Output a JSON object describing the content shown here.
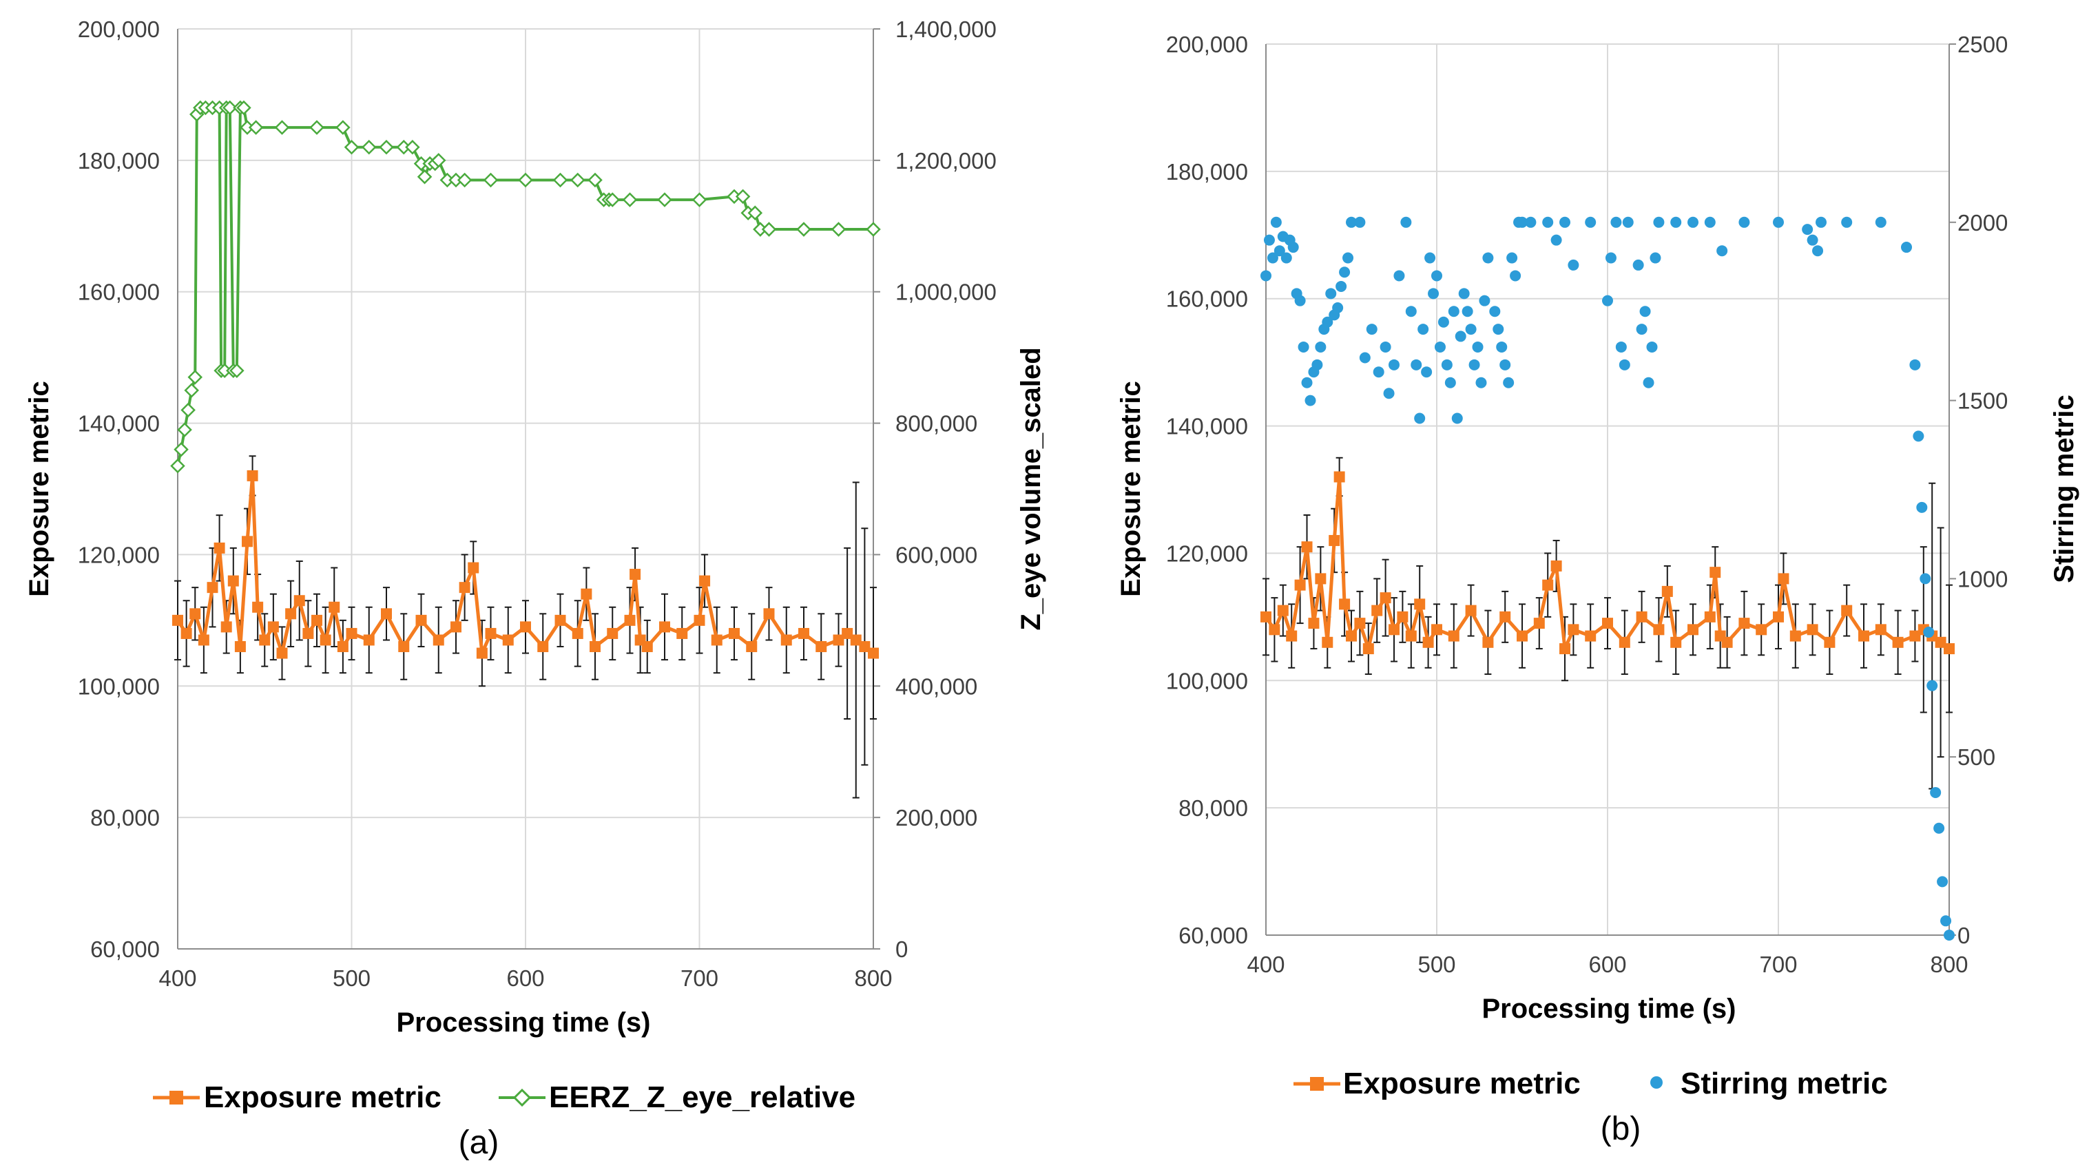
{
  "colors": {
    "exposure": "#F47C20",
    "eerz": "#4AAA3D",
    "stirring": "#2C9CD8",
    "error_bar": "#1a1a1a",
    "grid": "#D9D9D9"
  },
  "chart_data": [
    {
      "panel": "a",
      "type": "line",
      "panel_label": "(a)",
      "xlabel": "Processing time (s)",
      "ylabel": "Exposure metric",
      "y2label": "Z_eye volume_scaled",
      "xlim": [
        400,
        800
      ],
      "ylim": [
        60000,
        200000
      ],
      "y2lim": [
        0,
        1400000
      ],
      "xticks": [
        400,
        500,
        600,
        700,
        800
      ],
      "xtick_labels": [
        "400",
        "500",
        "600",
        "700",
        "800"
      ],
      "yticks": [
        60000,
        80000,
        100000,
        120000,
        140000,
        160000,
        180000,
        200000
      ],
      "ytick_labels": [
        "60,000",
        "80,000",
        "100,000",
        "120,000",
        "140,000",
        "160,000",
        "180,000",
        "200,000"
      ],
      "y2ticks": [
        0,
        200000,
        400000,
        600000,
        800000,
        1000000,
        1200000,
        1400000
      ],
      "y2tick_labels": [
        "0",
        "200,000",
        "400,000",
        "600,000",
        "800,000",
        "1,000,000",
        "1,200,000",
        "1,400,000"
      ],
      "legend": [
        "Exposure metric",
        "EERZ_Z_eye_relative"
      ],
      "series": [
        {
          "name": "Exposure metric",
          "axis": "left",
          "marker": "square",
          "x": [
            400,
            405,
            410,
            415,
            420,
            424,
            428,
            432,
            436,
            440,
            443,
            446,
            450,
            455,
            460,
            465,
            470,
            475,
            480,
            485,
            490,
            495,
            500,
            510,
            520,
            530,
            540,
            550,
            560,
            565,
            570,
            575,
            580,
            590,
            600,
            610,
            620,
            630,
            635,
            640,
            650,
            660,
            663,
            666,
            670,
            680,
            690,
            700,
            703,
            710,
            720,
            730,
            740,
            750,
            760,
            770,
            780,
            785,
            790,
            795,
            800
          ],
          "y": [
            110000,
            108000,
            111000,
            107000,
            115000,
            121000,
            109000,
            116000,
            106000,
            122000,
            132000,
            112000,
            107000,
            109000,
            105000,
            111000,
            113000,
            108000,
            110000,
            107000,
            112000,
            106000,
            108000,
            107000,
            111000,
            106000,
            110000,
            107000,
            109000,
            115000,
            118000,
            105000,
            108000,
            107000,
            109000,
            106000,
            110000,
            108000,
            114000,
            106000,
            108000,
            110000,
            117000,
            107000,
            106000,
            109000,
            108000,
            110000,
            116000,
            107000,
            108000,
            106000,
            111000,
            107000,
            108000,
            106000,
            107000,
            108000,
            107000,
            106000,
            105000
          ],
          "yerr": [
            6000,
            5000,
            4000,
            5000,
            6000,
            5000,
            4000,
            5000,
            4000,
            5000,
            3000,
            5000,
            4000,
            5000,
            4000,
            5000,
            6000,
            5000,
            4000,
            5000,
            6000,
            4000,
            4000,
            5000,
            4000,
            5000,
            4000,
            5000,
            4000,
            5000,
            4000,
            5000,
            4000,
            5000,
            4000,
            5000,
            4000,
            5000,
            4000,
            5000,
            4000,
            5000,
            4000,
            5000,
            4000,
            5000,
            4000,
            5000,
            4000,
            5000,
            4000,
            5000,
            4000,
            5000,
            4000,
            5000,
            4000,
            13000,
            24000,
            18000,
            10000
          ]
        },
        {
          "name": "EERZ_Z_eye_relative",
          "axis": "right",
          "marker": "diamond",
          "x": [
            400,
            402,
            404,
            406,
            408,
            410,
            411,
            413,
            416,
            420,
            424,
            425,
            427,
            428,
            430,
            432,
            434,
            436,
            438,
            440,
            445,
            460,
            480,
            495,
            500,
            510,
            520,
            530,
            535,
            540,
            542,
            545,
            548,
            550,
            555,
            560,
            565,
            580,
            600,
            620,
            630,
            640,
            645,
            648,
            650,
            660,
            680,
            700,
            720,
            725,
            728,
            732,
            735,
            740,
            760,
            780,
            800
          ],
          "y": [
            735000,
            760000,
            790000,
            820000,
            850000,
            870000,
            1270000,
            1280000,
            1280000,
            1280000,
            1280000,
            880000,
            880000,
            1280000,
            1280000,
            880000,
            880000,
            1280000,
            1280000,
            1250000,
            1250000,
            1250000,
            1250000,
            1250000,
            1220000,
            1220000,
            1220000,
            1220000,
            1220000,
            1195000,
            1175000,
            1195000,
            1195000,
            1200000,
            1170000,
            1170000,
            1170000,
            1170000,
            1170000,
            1170000,
            1170000,
            1170000,
            1140000,
            1140000,
            1140000,
            1140000,
            1140000,
            1140000,
            1145000,
            1145000,
            1120000,
            1120000,
            1095000,
            1095000,
            1095000,
            1095000,
            1095000
          ]
        }
      ]
    },
    {
      "panel": "b",
      "type": "line",
      "panel_label": "(b)",
      "xlabel": "Processing time (s)",
      "ylabel": "Exposure metric",
      "y2label": "Stirring metric",
      "xlim": [
        400,
        800
      ],
      "ylim": [
        60000,
        200000
      ],
      "y2lim": [
        0,
        2500
      ],
      "xticks": [
        400,
        500,
        600,
        700,
        800
      ],
      "xtick_labels": [
        "400",
        "500",
        "600",
        "700",
        "800"
      ],
      "yticks": [
        60000,
        80000,
        100000,
        120000,
        140000,
        160000,
        180000,
        200000
      ],
      "ytick_labels": [
        "60,000",
        "80,000",
        "100,000",
        "120,000",
        "140,000",
        "160,000",
        "180,000",
        "200,000"
      ],
      "y2ticks": [
        0,
        500,
        1000,
        1500,
        2000,
        2500
      ],
      "y2tick_labels": [
        "0",
        "500",
        "1000",
        "1500",
        "2000",
        "2500"
      ],
      "legend": [
        "Exposure metric",
        "Stirring metric"
      ],
      "series": [
        {
          "name": "Exposure metric",
          "axis": "left",
          "marker": "square",
          "x": [
            400,
            405,
            410,
            415,
            420,
            424,
            428,
            432,
            436,
            440,
            443,
            446,
            450,
            455,
            460,
            465,
            470,
            475,
            480,
            485,
            490,
            495,
            500,
            510,
            520,
            530,
            540,
            550,
            560,
            565,
            570,
            575,
            580,
            590,
            600,
            610,
            620,
            630,
            635,
            640,
            650,
            660,
            663,
            666,
            670,
            680,
            690,
            700,
            703,
            710,
            720,
            730,
            740,
            750,
            760,
            770,
            780,
            785,
            790,
            795,
            800
          ],
          "y": [
            110000,
            108000,
            111000,
            107000,
            115000,
            121000,
            109000,
            116000,
            106000,
            122000,
            132000,
            112000,
            107000,
            109000,
            105000,
            111000,
            113000,
            108000,
            110000,
            107000,
            112000,
            106000,
            108000,
            107000,
            111000,
            106000,
            110000,
            107000,
            109000,
            115000,
            118000,
            105000,
            108000,
            107000,
            109000,
            106000,
            110000,
            108000,
            114000,
            106000,
            108000,
            110000,
            117000,
            107000,
            106000,
            109000,
            108000,
            110000,
            116000,
            107000,
            108000,
            106000,
            111000,
            107000,
            108000,
            106000,
            107000,
            108000,
            107000,
            106000,
            105000
          ],
          "yerr": [
            6000,
            5000,
            4000,
            5000,
            6000,
            5000,
            4000,
            5000,
            4000,
            5000,
            3000,
            5000,
            4000,
            5000,
            4000,
            5000,
            6000,
            5000,
            4000,
            5000,
            6000,
            4000,
            4000,
            5000,
            4000,
            5000,
            4000,
            5000,
            4000,
            5000,
            4000,
            5000,
            4000,
            5000,
            4000,
            5000,
            4000,
            5000,
            4000,
            5000,
            4000,
            5000,
            4000,
            5000,
            4000,
            5000,
            4000,
            5000,
            4000,
            5000,
            4000,
            5000,
            4000,
            5000,
            4000,
            5000,
            4000,
            13000,
            24000,
            18000,
            10000
          ]
        },
        {
          "name": "Stirring metric",
          "axis": "right",
          "marker": "circle",
          "x": [
            400,
            402,
            404,
            406,
            408,
            410,
            412,
            414,
            416,
            418,
            420,
            422,
            424,
            426,
            428,
            430,
            432,
            434,
            436,
            438,
            440,
            442,
            444,
            446,
            448,
            450,
            455,
            458,
            462,
            466,
            470,
            472,
            475,
            478,
            482,
            485,
            488,
            490,
            492,
            494,
            496,
            498,
            500,
            502,
            504,
            506,
            508,
            510,
            512,
            514,
            516,
            518,
            520,
            522,
            524,
            526,
            528,
            530,
            534,
            536,
            538,
            540,
            542,
            544,
            546,
            548,
            550,
            555,
            565,
            570,
            575,
            580,
            590,
            600,
            602,
            605,
            608,
            610,
            612,
            618,
            620,
            622,
            624,
            626,
            628,
            630,
            640,
            650,
            660,
            667,
            680,
            700,
            717,
            720,
            723,
            725,
            740,
            760,
            775,
            780,
            782,
            784,
            786,
            788,
            790,
            792,
            794,
            796,
            798,
            800
          ],
          "y": [
            1850,
            1950,
            1900,
            2000,
            1920,
            1960,
            1900,
            1950,
            1930,
            1800,
            1780,
            1650,
            1550,
            1500,
            1580,
            1600,
            1650,
            1700,
            1720,
            1800,
            1740,
            1760,
            1820,
            1860,
            1900,
            2000,
            2000,
            1620,
            1700,
            1580,
            1650,
            1520,
            1600,
            1850,
            2000,
            1750,
            1600,
            1450,
            1700,
            1580,
            1900,
            1800,
            1850,
            1650,
            1720,
            1600,
            1550,
            1750,
            1450,
            1680,
            1800,
            1750,
            1700,
            1600,
            1650,
            1550,
            1780,
            1900,
            1750,
            1700,
            1650,
            1600,
            1550,
            1900,
            1850,
            2000,
            2000,
            2000,
            2000,
            1950,
            2000,
            1880,
            2000,
            1780,
            1900,
            2000,
            1650,
            1600,
            2000,
            1880,
            1700,
            1750,
            1550,
            1650,
            1900,
            2000,
            2000,
            2000,
            2000,
            1920,
            2000,
            2000,
            1980,
            1950,
            1920,
            2000,
            2000,
            2000,
            1930,
            1600,
            1400,
            1200,
            1000,
            850,
            700,
            400,
            300,
            150,
            40,
            0
          ]
        }
      ]
    }
  ]
}
